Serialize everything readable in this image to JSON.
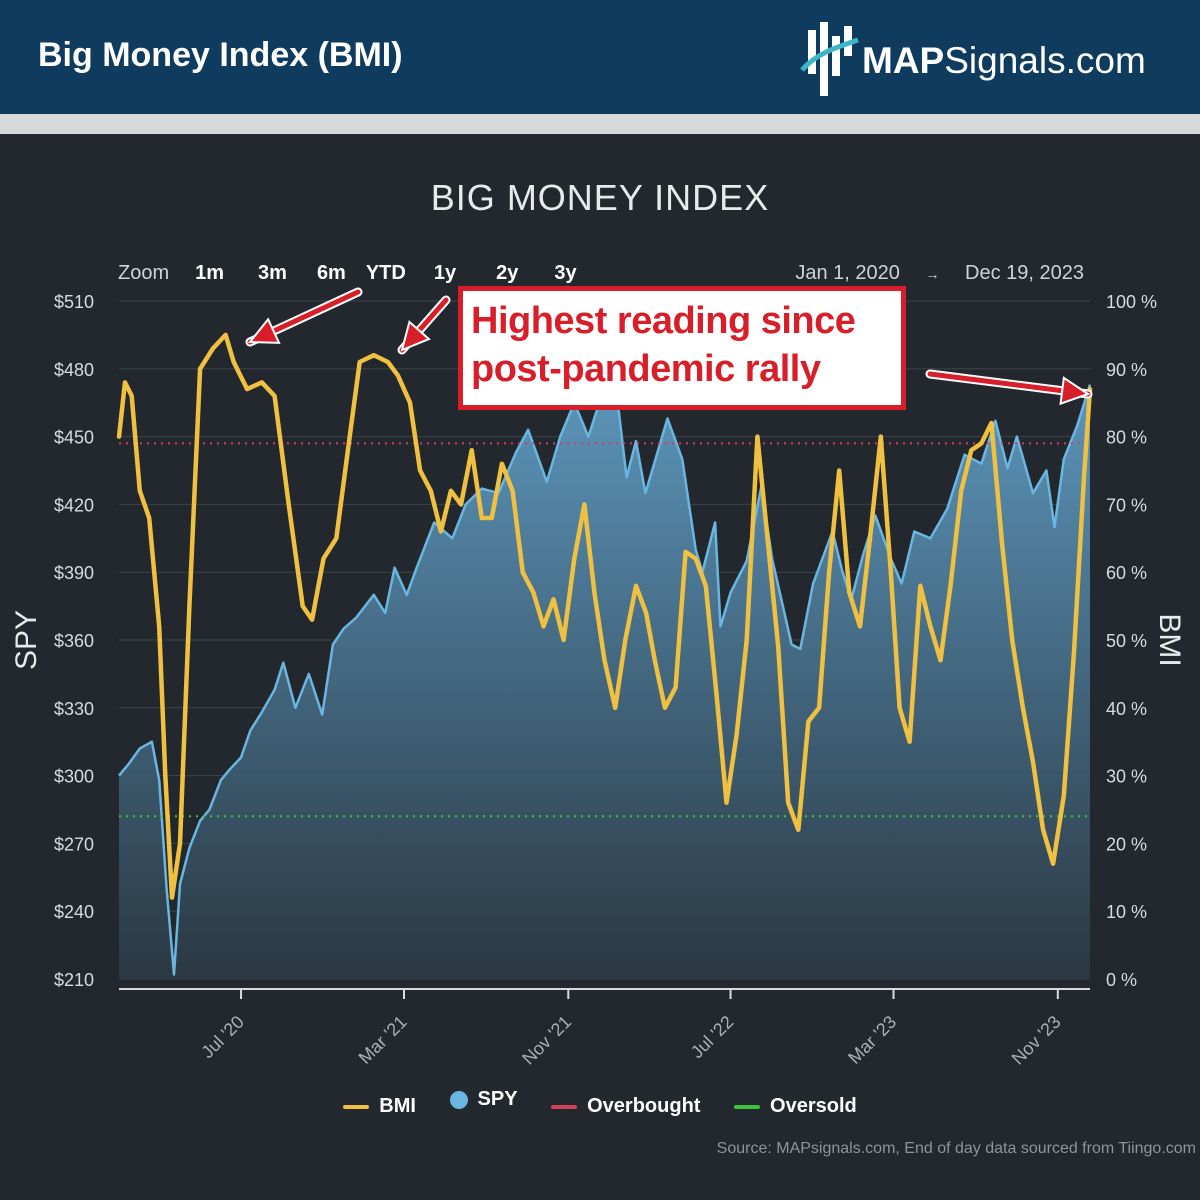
{
  "header": {
    "title": "Big Money Index (BMI)",
    "logo_bold": "MAP",
    "logo_regular": "Signals.com",
    "bg_color": "#0f3b5f"
  },
  "zoom": {
    "label": "Zoom",
    "options": [
      "1m",
      "3m",
      "6m",
      "YTD",
      "1y",
      "2y",
      "3y"
    ]
  },
  "range": {
    "from": "Jan 1, 2020",
    "arrow": "→",
    "to": "Dec 19, 2023"
  },
  "annotation": {
    "line1": "Highest reading since",
    "line2": "post-pandemic rally",
    "color": "#d81e28"
  },
  "legend": {
    "bmi": "BMI",
    "spy": "SPY",
    "overbought": "Overbought",
    "oversold": "Oversold"
  },
  "source": "Source: MAPsignals.com, End of day data sourced from Tiingo.com",
  "chart_data": {
    "type": "line",
    "title": "BIG MONEY INDEX",
    "x_type": "date",
    "xlim": [
      "2020-01-01",
      "2023-12-19"
    ],
    "x_ticks": [
      "2020-07-01",
      "2021-03-01",
      "2021-11-01",
      "2022-07-01",
      "2023-03-01",
      "2023-11-01"
    ],
    "x_tick_labels": [
      "Jul '20",
      "Mar '21",
      "Nov '21",
      "Jul '22",
      "Mar '23",
      "Nov '23"
    ],
    "y_left": {
      "label": "SPY",
      "ylim": [
        210,
        510
      ],
      "ticks": [
        "$210",
        "$240",
        "$270",
        "$300",
        "$330",
        "$360",
        "$390",
        "$420",
        "$450",
        "$480",
        "$510"
      ]
    },
    "y_right": {
      "label": "BMI",
      "ylim": [
        0,
        100
      ],
      "ticks": [
        "0 %",
        "10 %",
        "20 %",
        "30 %",
        "40 %",
        "50 %",
        "60 %",
        "70 %",
        "80 %",
        "90 %",
        "100 %"
      ]
    },
    "thresholds": {
      "overbought": 79,
      "oversold": 24
    },
    "colors": {
      "bmi": "#f0c040",
      "spy": "#6bb6e0",
      "overbought": "#d0405a",
      "oversold": "#3cc43c"
    },
    "series": [
      {
        "name": "BMI",
        "axis": "right",
        "points": [
          [
            "2020-01-01",
            80
          ],
          [
            "2020-01-10",
            88
          ],
          [
            "2020-01-20",
            86
          ],
          [
            "2020-02-01",
            72
          ],
          [
            "2020-02-15",
            68
          ],
          [
            "2020-03-01",
            52
          ],
          [
            "2020-03-10",
            30
          ],
          [
            "2020-03-20",
            12
          ],
          [
            "2020-04-01",
            20
          ],
          [
            "2020-04-15",
            55
          ],
          [
            "2020-05-01",
            90
          ],
          [
            "2020-05-20",
            93
          ],
          [
            "2020-06-08",
            95
          ],
          [
            "2020-06-20",
            91
          ],
          [
            "2020-07-10",
            87
          ],
          [
            "2020-08-01",
            88
          ],
          [
            "2020-08-20",
            86
          ],
          [
            "2020-09-10",
            70
          ],
          [
            "2020-10-01",
            55
          ],
          [
            "2020-10-15",
            53
          ],
          [
            "2020-11-01",
            62
          ],
          [
            "2020-11-20",
            65
          ],
          [
            "2020-12-10",
            80
          ],
          [
            "2020-12-25",
            91
          ],
          [
            "2021-01-15",
            92
          ],
          [
            "2021-02-05",
            91
          ],
          [
            "2021-02-20",
            89
          ],
          [
            "2021-03-10",
            85
          ],
          [
            "2021-03-25",
            75
          ],
          [
            "2021-04-10",
            72
          ],
          [
            "2021-04-25",
            66
          ],
          [
            "2021-05-10",
            72
          ],
          [
            "2021-05-25",
            70
          ],
          [
            "2021-06-10",
            78
          ],
          [
            "2021-06-25",
            68
          ],
          [
            "2021-07-10",
            68
          ],
          [
            "2021-07-25",
            76
          ],
          [
            "2021-08-10",
            72
          ],
          [
            "2021-08-25",
            60
          ],
          [
            "2021-09-10",
            57
          ],
          [
            "2021-09-25",
            52
          ],
          [
            "2021-10-10",
            56
          ],
          [
            "2021-10-25",
            50
          ],
          [
            "2021-11-10",
            62
          ],
          [
            "2021-11-25",
            70
          ],
          [
            "2021-12-10",
            57
          ],
          [
            "2021-12-25",
            47
          ],
          [
            "2022-01-10",
            40
          ],
          [
            "2022-01-25",
            50
          ],
          [
            "2022-02-10",
            58
          ],
          [
            "2022-02-25",
            54
          ],
          [
            "2022-03-10",
            47
          ],
          [
            "2022-03-25",
            40
          ],
          [
            "2022-04-10",
            43
          ],
          [
            "2022-04-25",
            63
          ],
          [
            "2022-05-10",
            62
          ],
          [
            "2022-05-25",
            58
          ],
          [
            "2022-06-10",
            42
          ],
          [
            "2022-06-25",
            26
          ],
          [
            "2022-07-10",
            36
          ],
          [
            "2022-07-25",
            50
          ],
          [
            "2022-08-10",
            80
          ],
          [
            "2022-08-25",
            65
          ],
          [
            "2022-09-10",
            49
          ],
          [
            "2022-09-25",
            26
          ],
          [
            "2022-10-10",
            22
          ],
          [
            "2022-10-25",
            38
          ],
          [
            "2022-11-10",
            40
          ],
          [
            "2022-11-25",
            60
          ],
          [
            "2022-12-10",
            75
          ],
          [
            "2022-12-25",
            57
          ],
          [
            "2023-01-10",
            52
          ],
          [
            "2023-01-25",
            65
          ],
          [
            "2023-02-10",
            80
          ],
          [
            "2023-02-25",
            60
          ],
          [
            "2023-03-10",
            40
          ],
          [
            "2023-03-25",
            35
          ],
          [
            "2023-04-10",
            58
          ],
          [
            "2023-04-25",
            52
          ],
          [
            "2023-05-10",
            47
          ],
          [
            "2023-05-25",
            58
          ],
          [
            "2023-06-10",
            72
          ],
          [
            "2023-06-25",
            78
          ],
          [
            "2023-07-10",
            79
          ],
          [
            "2023-07-25",
            82
          ],
          [
            "2023-08-10",
            64
          ],
          [
            "2023-08-25",
            50
          ],
          [
            "2023-09-10",
            40
          ],
          [
            "2023-09-25",
            32
          ],
          [
            "2023-10-10",
            22
          ],
          [
            "2023-10-25",
            17
          ],
          [
            "2023-11-10",
            27
          ],
          [
            "2023-11-25",
            48
          ],
          [
            "2023-12-10",
            74
          ],
          [
            "2023-12-19",
            87
          ]
        ]
      },
      {
        "name": "SPY",
        "axis": "left",
        "points": [
          [
            "2020-01-01",
            300
          ],
          [
            "2020-01-15",
            305
          ],
          [
            "2020-02-01",
            312
          ],
          [
            "2020-02-19",
            315
          ],
          [
            "2020-03-01",
            298
          ],
          [
            "2020-03-12",
            250
          ],
          [
            "2020-03-23",
            212
          ],
          [
            "2020-04-01",
            252
          ],
          [
            "2020-04-15",
            268
          ],
          [
            "2020-05-01",
            280
          ],
          [
            "2020-05-15",
            285
          ],
          [
            "2020-06-01",
            298
          ],
          [
            "2020-06-15",
            303
          ],
          [
            "2020-07-01",
            308
          ],
          [
            "2020-07-15",
            320
          ],
          [
            "2020-08-01",
            328
          ],
          [
            "2020-08-20",
            338
          ],
          [
            "2020-09-02",
            350
          ],
          [
            "2020-09-20",
            330
          ],
          [
            "2020-10-10",
            345
          ],
          [
            "2020-10-30",
            327
          ],
          [
            "2020-11-15",
            358
          ],
          [
            "2020-12-01",
            365
          ],
          [
            "2020-12-20",
            370
          ],
          [
            "2021-01-15",
            380
          ],
          [
            "2021-02-01",
            372
          ],
          [
            "2021-02-15",
            392
          ],
          [
            "2021-03-05",
            380
          ],
          [
            "2021-03-20",
            392
          ],
          [
            "2021-04-15",
            412
          ],
          [
            "2021-05-12",
            405
          ],
          [
            "2021-06-01",
            420
          ],
          [
            "2021-06-25",
            427
          ],
          [
            "2021-07-20",
            425
          ],
          [
            "2021-08-15",
            443
          ],
          [
            "2021-09-02",
            453
          ],
          [
            "2021-09-30",
            430
          ],
          [
            "2021-10-20",
            450
          ],
          [
            "2021-11-10",
            465
          ],
          [
            "2021-12-01",
            450
          ],
          [
            "2021-12-28",
            475
          ],
          [
            "2022-01-15",
            462
          ],
          [
            "2022-01-27",
            432
          ],
          [
            "2022-02-10",
            448
          ],
          [
            "2022-02-24",
            425
          ],
          [
            "2022-03-29",
            458
          ],
          [
            "2022-04-20",
            440
          ],
          [
            "2022-05-10",
            400
          ],
          [
            "2022-05-20",
            390
          ],
          [
            "2022-06-08",
            412
          ],
          [
            "2022-06-16",
            366
          ],
          [
            "2022-07-01",
            381
          ],
          [
            "2022-07-25",
            395
          ],
          [
            "2022-08-16",
            428
          ],
          [
            "2022-09-01",
            396
          ],
          [
            "2022-09-30",
            358
          ],
          [
            "2022-10-13",
            356
          ],
          [
            "2022-11-01",
            385
          ],
          [
            "2022-11-30",
            408
          ],
          [
            "2022-12-15",
            390
          ],
          [
            "2022-12-28",
            378
          ],
          [
            "2023-01-15",
            398
          ],
          [
            "2023-02-02",
            415
          ],
          [
            "2023-02-25",
            396
          ],
          [
            "2023-03-13",
            385
          ],
          [
            "2023-04-01",
            408
          ],
          [
            "2023-04-25",
            405
          ],
          [
            "2023-05-20",
            418
          ],
          [
            "2023-06-15",
            442
          ],
          [
            "2023-07-10",
            438
          ],
          [
            "2023-07-31",
            457
          ],
          [
            "2023-08-18",
            436
          ],
          [
            "2023-09-01",
            450
          ],
          [
            "2023-09-25",
            425
          ],
          [
            "2023-10-15",
            435
          ],
          [
            "2023-10-27",
            410
          ],
          [
            "2023-11-10",
            440
          ],
          [
            "2023-11-30",
            455
          ],
          [
            "2023-12-19",
            473
          ]
        ]
      }
    ]
  }
}
